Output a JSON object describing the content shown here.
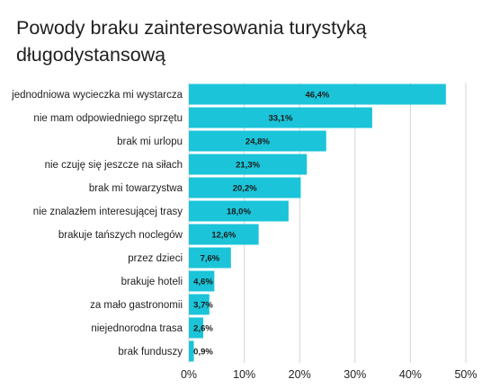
{
  "chart_data": {
    "type": "bar",
    "orientation": "horizontal",
    "title": "Powody braku zainteresowania turystyką długodystansową",
    "categories": [
      "jednodniowa wycieczka mi wystarcza",
      "nie mam odpowiedniego sprzętu",
      "brak mi urlopu",
      "nie czuję się jeszcze na siłach",
      "brak mi towarzystwa",
      "nie znalazłem interesującej trasy",
      "brakuje tańszych noclegów",
      "przez dzieci",
      "brakuje hoteli",
      "za mało gastronomii",
      "niejednorodna trasa",
      "brak funduszy"
    ],
    "values": [
      46.4,
      33.1,
      24.8,
      21.3,
      20.2,
      18.0,
      12.6,
      7.6,
      4.6,
      3.7,
      2.6,
      0.9
    ],
    "data_labels": [
      "46,4%",
      "33,1%",
      "24,8%",
      "21,3%",
      "20,2%",
      "18,0%",
      "12,6%",
      "7,6%",
      "4,6%",
      "3,7%",
      "2,6%",
      "0,9%"
    ],
    "xlim": [
      0,
      50
    ],
    "xticks": [
      0,
      10,
      20,
      30,
      40,
      50
    ],
    "xtick_labels": [
      "0%",
      "10%",
      "20%",
      "30%",
      "40%",
      "50%"
    ],
    "xlabel": "",
    "ylabel": "",
    "grid": "vertical",
    "legend": "none",
    "bar_color": "#1bc4d8"
  }
}
